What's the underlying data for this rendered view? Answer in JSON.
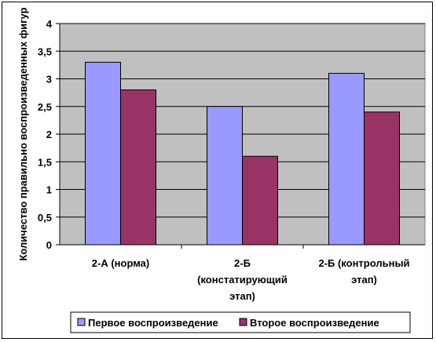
{
  "chart_data": {
    "type": "bar",
    "title": "",
    "xlabel": "",
    "ylabel": "Количество правильно воспроизведенных фигур",
    "ylim": [
      0,
      4
    ],
    "ytick_step": 0.5,
    "ytick_labels": [
      "0",
      "0,5",
      "1",
      "1,5",
      "2",
      "2,5",
      "3",
      "3,5",
      "4"
    ],
    "categories": [
      [
        "2-А (норма)"
      ],
      [
        "2-Б",
        "(констатирующий",
        "этап)"
      ],
      [
        "2-Б (контрольный",
        "этап)"
      ]
    ],
    "series": [
      {
        "name": "Первое воспроизведение",
        "color": "#9999ff",
        "values": [
          3.3,
          2.5,
          3.1
        ]
      },
      {
        "name": "Второе воспроизведение",
        "color": "#993366",
        "values": [
          2.8,
          1.6,
          2.4
        ]
      }
    ],
    "plot_background": "#c0c0c0",
    "grid": true,
    "legend_position": "bottom"
  }
}
